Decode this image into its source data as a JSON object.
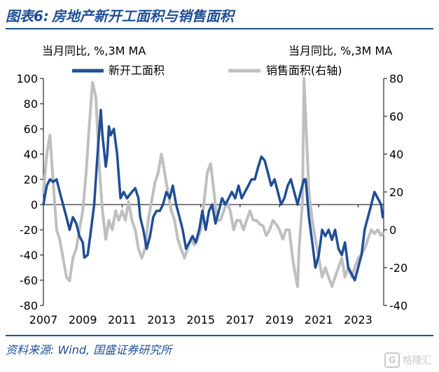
{
  "header": {
    "figure_no": "图表6:",
    "title": "房地产新开工面积与销售面积"
  },
  "footer": {
    "source": "资料来源: Wind, 国盛证券研究所"
  },
  "watermark": {
    "text": "格隆汇",
    "logo_glyph": "G"
  },
  "chart_data": {
    "type": "line",
    "title": "",
    "xlabel": "",
    "ylabel_left": "当月同比, %,3M MA",
    "ylabel_right": "当月同比, %,3M MA",
    "x_ticks": [
      "2007",
      "2009",
      "2011",
      "2013",
      "2015",
      "2017",
      "2019",
      "2021",
      "2023"
    ],
    "x_range": [
      2007.0,
      2024.3
    ],
    "y_left_ticks": [
      "100",
      "80",
      "60",
      "40",
      "20",
      "0",
      "-20",
      "-40",
      "-60",
      "-80"
    ],
    "y_right_ticks": [
      "80",
      "60",
      "40",
      "20",
      "0",
      "-20",
      "-40"
    ],
    "ylim_left": [
      -80,
      100
    ],
    "ylim_right": [
      -40,
      80
    ],
    "grid": false,
    "legend_position": "top",
    "series": [
      {
        "name": "新开工面积",
        "axis": "left",
        "color": "#1f4e96",
        "points": [
          [
            2007.0,
            0
          ],
          [
            2007.17,
            15
          ],
          [
            2007.33,
            20
          ],
          [
            2007.5,
            18
          ],
          [
            2007.67,
            20
          ],
          [
            2007.83,
            10
          ],
          [
            2008.0,
            0
          ],
          [
            2008.17,
            -10
          ],
          [
            2008.33,
            -20
          ],
          [
            2008.5,
            -10
          ],
          [
            2008.67,
            -15
          ],
          [
            2008.83,
            -25
          ],
          [
            2009.0,
            -30
          ],
          [
            2009.08,
            -42
          ],
          [
            2009.25,
            -40
          ],
          [
            2009.42,
            -20
          ],
          [
            2009.58,
            0
          ],
          [
            2009.75,
            40
          ],
          [
            2009.92,
            75
          ],
          [
            2010.0,
            55
          ],
          [
            2010.17,
            30
          ],
          [
            2010.25,
            40
          ],
          [
            2010.33,
            62
          ],
          [
            2010.42,
            55
          ],
          [
            2010.58,
            60
          ],
          [
            2010.75,
            40
          ],
          [
            2010.92,
            5
          ],
          [
            2011.08,
            10
          ],
          [
            2011.25,
            5
          ],
          [
            2011.5,
            10
          ],
          [
            2011.67,
            13
          ],
          [
            2011.83,
            5
          ],
          [
            2011.92,
            -10
          ],
          [
            2012.08,
            -20
          ],
          [
            2012.25,
            -35
          ],
          [
            2012.42,
            -25
          ],
          [
            2012.58,
            -10
          ],
          [
            2012.75,
            -5
          ],
          [
            2012.92,
            -5
          ],
          [
            2013.08,
            0
          ],
          [
            2013.25,
            10
          ],
          [
            2013.42,
            5
          ],
          [
            2013.58,
            15
          ],
          [
            2013.75,
            0
          ],
          [
            2013.92,
            -10
          ],
          [
            2014.08,
            -20
          ],
          [
            2014.25,
            -35
          ],
          [
            2014.42,
            -30
          ],
          [
            2014.58,
            -25
          ],
          [
            2014.75,
            -30
          ],
          [
            2014.92,
            -20
          ],
          [
            2015.08,
            -5
          ],
          [
            2015.25,
            -20
          ],
          [
            2015.42,
            -5
          ],
          [
            2015.58,
            0
          ],
          [
            2015.75,
            -15
          ],
          [
            2015.92,
            -5
          ],
          [
            2016.08,
            5
          ],
          [
            2016.25,
            0
          ],
          [
            2016.42,
            5
          ],
          [
            2016.58,
            10
          ],
          [
            2016.75,
            5
          ],
          [
            2016.92,
            15
          ],
          [
            2017.08,
            5
          ],
          [
            2017.25,
            10
          ],
          [
            2017.42,
            15
          ],
          [
            2017.58,
            20
          ],
          [
            2017.75,
            20
          ],
          [
            2017.92,
            30
          ],
          [
            2018.08,
            38
          ],
          [
            2018.25,
            35
          ],
          [
            2018.42,
            25
          ],
          [
            2018.58,
            15
          ],
          [
            2018.75,
            20
          ],
          [
            2018.92,
            10
          ],
          [
            2019.08,
            0
          ],
          [
            2019.25,
            5
          ],
          [
            2019.42,
            15
          ],
          [
            2019.58,
            20
          ],
          [
            2019.75,
            10
          ],
          [
            2019.92,
            0
          ],
          [
            2020.08,
            10
          ],
          [
            2020.25,
            20
          ],
          [
            2020.33,
            20
          ],
          [
            2020.5,
            -10
          ],
          [
            2020.67,
            -30
          ],
          [
            2020.83,
            -50
          ],
          [
            2021.0,
            -40
          ],
          [
            2021.17,
            -20
          ],
          [
            2021.33,
            -25
          ],
          [
            2021.5,
            -20
          ],
          [
            2021.67,
            -28
          ],
          [
            2021.83,
            -20
          ],
          [
            2022.0,
            -35
          ],
          [
            2022.17,
            -40
          ],
          [
            2022.33,
            -30
          ],
          [
            2022.5,
            -50
          ],
          [
            2022.67,
            -55
          ],
          [
            2022.83,
            -60
          ],
          [
            2023.0,
            -50
          ],
          [
            2023.17,
            -40
          ],
          [
            2023.33,
            -20
          ],
          [
            2023.5,
            -10
          ],
          [
            2023.67,
            0
          ],
          [
            2023.83,
            10
          ],
          [
            2024.0,
            5
          ],
          [
            2024.17,
            0
          ],
          [
            2024.25,
            -10
          ]
        ]
      },
      {
        "name": "销售面积(右轴)",
        "axis": "right",
        "color": "#bfbfbf",
        "points": [
          [
            2007.0,
            20
          ],
          [
            2007.17,
            40
          ],
          [
            2007.33,
            50
          ],
          [
            2007.5,
            25
          ],
          [
            2007.67,
            0
          ],
          [
            2007.83,
            -5
          ],
          [
            2008.0,
            -15
          ],
          [
            2008.17,
            -25
          ],
          [
            2008.33,
            -27
          ],
          [
            2008.5,
            -15
          ],
          [
            2008.67,
            -10
          ],
          [
            2008.83,
            0
          ],
          [
            2009.0,
            10
          ],
          [
            2009.17,
            30
          ],
          [
            2009.33,
            55
          ],
          [
            2009.5,
            78
          ],
          [
            2009.67,
            70
          ],
          [
            2009.83,
            35
          ],
          [
            2010.0,
            10
          ],
          [
            2010.17,
            -5
          ],
          [
            2010.33,
            5
          ],
          [
            2010.5,
            0
          ],
          [
            2010.67,
            10
          ],
          [
            2010.83,
            5
          ],
          [
            2011.0,
            10
          ],
          [
            2011.17,
            5
          ],
          [
            2011.33,
            15
          ],
          [
            2011.5,
            5
          ],
          [
            2011.67,
            0
          ],
          [
            2011.83,
            -10
          ],
          [
            2012.0,
            -15
          ],
          [
            2012.17,
            -10
          ],
          [
            2012.33,
            5
          ],
          [
            2012.5,
            15
          ],
          [
            2012.67,
            25
          ],
          [
            2012.83,
            30
          ],
          [
            2013.0,
            40
          ],
          [
            2013.17,
            30
          ],
          [
            2013.33,
            20
          ],
          [
            2013.5,
            10
          ],
          [
            2013.67,
            5
          ],
          [
            2013.83,
            -5
          ],
          [
            2014.0,
            -10
          ],
          [
            2014.17,
            -15
          ],
          [
            2014.33,
            -10
          ],
          [
            2014.5,
            -5
          ],
          [
            2014.67,
            -8
          ],
          [
            2014.83,
            -5
          ],
          [
            2015.0,
            0
          ],
          [
            2015.17,
            15
          ],
          [
            2015.33,
            30
          ],
          [
            2015.5,
            35
          ],
          [
            2015.67,
            20
          ],
          [
            2015.83,
            5
          ],
          [
            2016.0,
            5
          ],
          [
            2016.17,
            10
          ],
          [
            2016.33,
            15
          ],
          [
            2016.5,
            10
          ],
          [
            2016.67,
            0
          ],
          [
            2016.83,
            5
          ],
          [
            2017.0,
            5
          ],
          [
            2017.17,
            0
          ],
          [
            2017.33,
            5
          ],
          [
            2017.5,
            10
          ],
          [
            2017.67,
            5
          ],
          [
            2017.83,
            5
          ],
          [
            2018.0,
            3
          ],
          [
            2018.17,
            2
          ],
          [
            2018.33,
            -3
          ],
          [
            2018.5,
            0
          ],
          [
            2018.67,
            5
          ],
          [
            2018.83,
            3
          ],
          [
            2019.0,
            0
          ],
          [
            2019.17,
            -5
          ],
          [
            2019.33,
            0
          ],
          [
            2019.5,
            0
          ],
          [
            2019.67,
            -15
          ],
          [
            2019.83,
            -25
          ],
          [
            2019.92,
            -30
          ],
          [
            2020.0,
            -10
          ],
          [
            2020.17,
            15
          ],
          [
            2020.25,
            80
          ],
          [
            2020.33,
            60
          ],
          [
            2020.5,
            20
          ],
          [
            2020.67,
            5
          ],
          [
            2020.83,
            -5
          ],
          [
            2021.0,
            -15
          ],
          [
            2021.17,
            -25
          ],
          [
            2021.33,
            -20
          ],
          [
            2021.5,
            -25
          ],
          [
            2021.67,
            -30
          ],
          [
            2021.83,
            -25
          ],
          [
            2022.0,
            -20
          ],
          [
            2022.17,
            -15
          ],
          [
            2022.33,
            -25
          ],
          [
            2022.5,
            -20
          ],
          [
            2022.67,
            -25
          ],
          [
            2022.83,
            -20
          ],
          [
            2023.0,
            -15
          ],
          [
            2023.17,
            -13
          ],
          [
            2023.33,
            -10
          ],
          [
            2023.5,
            -5
          ],
          [
            2023.67,
            0
          ],
          [
            2023.83,
            -2
          ],
          [
            2024.0,
            0
          ],
          [
            2024.17,
            -3
          ],
          [
            2024.25,
            -2
          ]
        ]
      }
    ]
  }
}
